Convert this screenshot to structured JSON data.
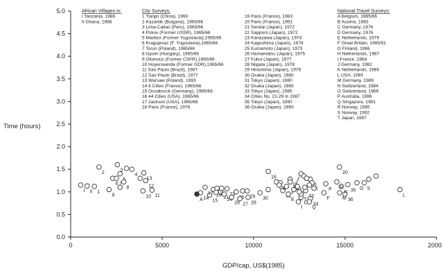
{
  "chart_data": {
    "type": "scatter",
    "xlabel": "GDP/cap, US$(1985)",
    "ylabel": "Time (hours)",
    "xlim": [
      0,
      20000
    ],
    "ylim": [
      0,
      5
    ],
    "x_ticks": [
      0,
      5000,
      10000,
      15000,
      20000
    ],
    "y_ticks": [
      0.0,
      0.5,
      1.0,
      1.5,
      2.0,
      2.5,
      3.0,
      3.5,
      4.0,
      4.5,
      5.0
    ],
    "grid": false,
    "legend_groups": [
      {
        "title": "African Villages in:",
        "items": [
          "I  Tanzania, 1986",
          "II Ghana, 1988"
        ]
      },
      {
        "title": "City Surveys:",
        "items": [
          "1  Tianjin (China), 1993",
          "2  Kazanlik (Bulgaria), 1965/66",
          "3  Lima-Callao (Peru), 1965/66",
          "4  Pskov (Former USSR), 1965/66",
          "5  Maribor (Former Yugoslavia),1965/66",
          "6  Kragujevac (F. Yugoslavia),1965/66",
          "7  Torun (Poland), 1965/66",
          "8  Gyoer (Hungary), 1965/66",
          "9  Olomouc (Former CSFR),1965/66",
          "10 Hoyerswerde (Former GDR),1965/66",
          "11 Sao Paulo (Brazil), 1987",
          "12 Sao Paulo (Brazil), 1977",
          "13 Warsaw (Poland), 1993",
          "14 6 Cities (France), 1965/66",
          "15 Osnabruck (Germany), 1965/66",
          "16 44 Cities (USA), 1965/66",
          "17 Jackson (USA), 1965/66",
          "18 Paris (France), 1976"
        ]
      },
      {
        "title": "",
        "items": [
          "19  Paris (France), 1983",
          "20  Paris (France), 1991",
          "21  Sendai (Japan), 1972",
          "22  Sapporo (Japan), 1972",
          "23  Kanazawa (Japan), 1974",
          "24  Kagoshima (Japan), 1974",
          "25  Kumamoto (Japan), 1973",
          "26  Hamamatsu (Japan), 1975",
          "27  Fukui (Japan), 1977",
          "28  Niigata (Japan), 1978",
          "29  Hiroshima (Japan), 1978",
          "30  Osaka (Japan), 1980",
          "31  Tokyo (Japan), 1980",
          "32  Osaka (Japan), 1985",
          "33  Tokyo (Japan), 1985",
          "34  Cities No. 21-29 in 1987",
          "35  Tokyo (Japan), 1990",
          "36  Osaka (Japan), 1990"
        ]
      },
      {
        "title": "National Travel Surveys:",
        "items": [
          "A  Belgium, 1965/66",
          "B  Austria, 1983",
          "C  Germany, 1976",
          "D  Germany, 1976",
          "E  Netherlands, 1979",
          "F  Great Britain, 1985/91",
          "G  Finland, 1986",
          "H  Netherlands, 1987",
          "I    France, 1984",
          "J   Germany, 1982",
          "K  Netherlands, 1989",
          "L  USA, 1990",
          "M Germany, 1989",
          "N  Switzerland, 1984",
          "O  Switzerland, 1989",
          "P  Australia, 1986",
          "Q  Singapore, 1991",
          "R  Norway, 1985",
          "S  Norway, 1992",
          "T  Japan, 1987"
        ]
      }
    ],
    "points": [
      {
        "label": "I",
        "x": 550,
        "y": 1.15
      },
      {
        "label": "II",
        "x": 900,
        "y": 1.13
      },
      {
        "label": "1",
        "x": 1300,
        "y": 1.12
      },
      {
        "label": "2",
        "x": 1550,
        "y": 1.55
      },
      {
        "label": "3",
        "x": 2550,
        "y": 1.6
      },
      {
        "label": "4",
        "x": 3350,
        "y": 1.5
      },
      {
        "label": "5",
        "x": 2700,
        "y": 1.4
      },
      {
        "label": "6",
        "x": 2300,
        "y": 1.3
      },
      {
        "label": "7",
        "x": 2500,
        "y": 1.3
      },
      {
        "label": "8",
        "x": 2900,
        "y": 1.22
      },
      {
        "label": "9",
        "x": 2100,
        "y": 1.05
      },
      {
        "label": "10",
        "x": 3950,
        "y": 1.02
      },
      {
        "label": "11",
        "x": 4450,
        "y": 1.04
      },
      {
        "label": "12",
        "x": 4100,
        "y": 1.25
      },
      {
        "label": "13",
        "x": 4000,
        "y": 1.42
      },
      {
        "label": "14",
        "x": 7100,
        "y": 0.98
      },
      {
        "label": "15",
        "x": 7600,
        "y": 0.93
      },
      {
        "label": "16",
        "x": 7800,
        "y": 1.05
      },
      {
        "label": "17",
        "x": 7350,
        "y": 1.1
      },
      {
        "label": "18",
        "x": 10800,
        "y": 1.45
      },
      {
        "label": "19",
        "x": 12600,
        "y": 1.4
      },
      {
        "label": "20",
        "x": 14700,
        "y": 1.55
      },
      {
        "label": "21",
        "x": 8200,
        "y": 1.0
      },
      {
        "label": "22",
        "x": 8000,
        "y": 1.08
      },
      {
        "label": "23",
        "x": 8550,
        "y": 1.07
      },
      {
        "label": "24",
        "x": 8400,
        "y": 0.95
      },
      {
        "label": "25",
        "x": 9050,
        "y": 1.0
      },
      {
        "label": "26",
        "x": 8800,
        "y": 0.88
      },
      {
        "label": "27",
        "x": 9250,
        "y": 0.85
      },
      {
        "label": "28",
        "x": 9700,
        "y": 0.88
      },
      {
        "label": "29",
        "x": 9650,
        "y": 1.02
      },
      {
        "label": "30",
        "x": 10350,
        "y": 0.98
      },
      {
        "label": "31",
        "x": 11600,
        "y": 1.03
      },
      {
        "label": "32",
        "x": 12350,
        "y": 1.1
      },
      {
        "label": "33",
        "x": 12850,
        "y": 1.03
      },
      {
        "label": "34",
        "x": 13100,
        "y": 0.85
      },
      {
        "label": "35",
        "x": 15150,
        "y": 1.16
      },
      {
        "label": "36",
        "x": 15000,
        "y": 0.95
      },
      {
        "label": "A",
        "x": 6900,
        "y": 0.95,
        "filled": true
      },
      {
        "label": "B",
        "x": 11450,
        "y": 1.2
      },
      {
        "label": "C",
        "x": 12600,
        "y": 0.88
      },
      {
        "label": "D",
        "x": 11250,
        "y": 1.22
      },
      {
        "label": "E",
        "x": 11900,
        "y": 0.95
      },
      {
        "label": "F",
        "x": 13850,
        "y": 0.98
      },
      {
        "label": "G",
        "x": 12000,
        "y": 1.28
      },
      {
        "label": "H",
        "x": 13100,
        "y": 1.28
      },
      {
        "label": "I",
        "x": 12450,
        "y": 0.78
      },
      {
        "label": "J",
        "x": 12000,
        "y": 1.22
      },
      {
        "label": "K",
        "x": 13200,
        "y": 1.2
      },
      {
        "label": "L",
        "x": 18000,
        "y": 1.05
      },
      {
        "label": "M",
        "x": 14700,
        "y": 0.98
      },
      {
        "label": "N",
        "x": 14800,
        "y": 1.12
      },
      {
        "label": "O",
        "x": 15650,
        "y": 1.2
      },
      {
        "label": "P",
        "x": 13950,
        "y": 1.18
      },
      {
        "label": "Q",
        "x": 13050,
        "y": 0.78
      },
      {
        "label": "R",
        "x": 14550,
        "y": 1.22
      },
      {
        "label": "S",
        "x": 16050,
        "y": 1.2
      },
      {
        "label": "T",
        "x": 12600,
        "y": 0.95
      },
      {
        "label": "",
        "x": 16300,
        "y": 1.28
      },
      {
        "label": "",
        "x": 16700,
        "y": 1.35
      },
      {
        "label": "",
        "x": 12750,
        "y": 1.35
      },
      {
        "label": "",
        "x": 12900,
        "y": 1.3
      },
      {
        "label": "",
        "x": 12400,
        "y": 1.12
      },
      {
        "label": "",
        "x": 12200,
        "y": 1.05
      },
      {
        "label": "",
        "x": 12500,
        "y": 1.0
      },
      {
        "label": "",
        "x": 12800,
        "y": 1.1
      },
      {
        "label": "",
        "x": 13050,
        "y": 1.15
      },
      {
        "label": "",
        "x": 13300,
        "y": 1.08
      },
      {
        "label": "",
        "x": 11800,
        "y": 1.12
      },
      {
        "label": "",
        "x": 10800,
        "y": 1.05
      },
      {
        "label": "",
        "x": 11400,
        "y": 1.15
      },
      {
        "label": "",
        "x": 7950,
        "y": 0.99
      },
      {
        "label": "",
        "x": 8250,
        "y": 1.08
      },
      {
        "label": "",
        "x": 9400,
        "y": 1.02
      },
      {
        "label": "",
        "x": 3050,
        "y": 1.52
      },
      {
        "label": "",
        "x": 2700,
        "y": 1.1
      },
      {
        "label": "",
        "x": 3800,
        "y": 1.3
      }
    ]
  }
}
